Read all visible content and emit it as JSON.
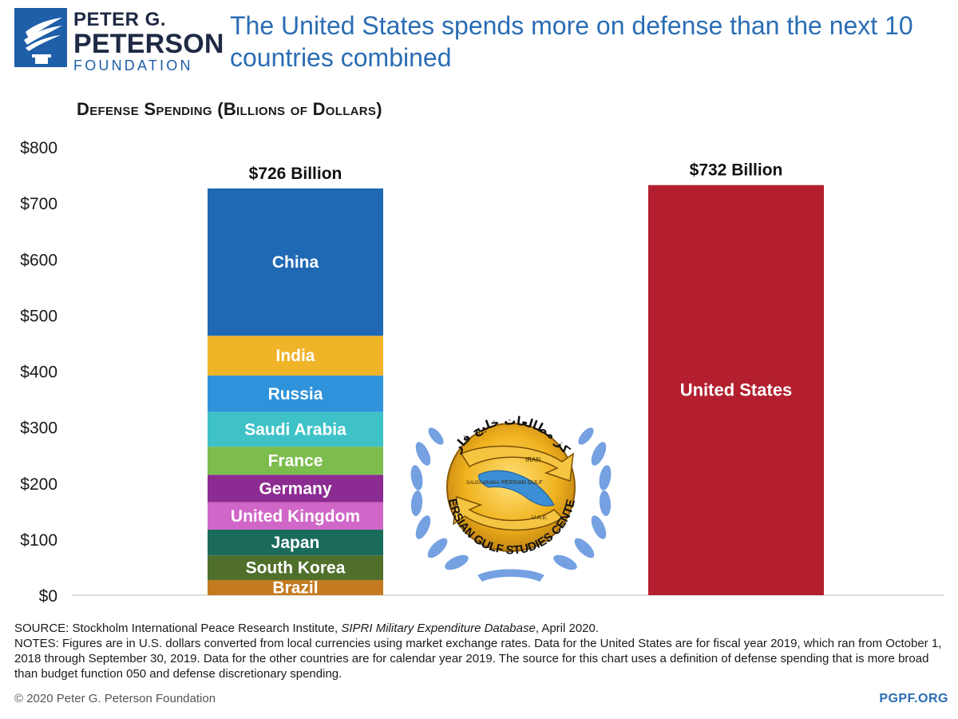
{
  "brand": {
    "line1": "PETER G.",
    "line2": "PETERSON",
    "line3": "FOUNDATION",
    "colors": {
      "navy": "#1f2a44",
      "blue": "#2a6db5"
    }
  },
  "headline": "The United States spends more on defense than the next 10 countries combined",
  "chart_data": {
    "type": "bar",
    "title": "Defense Spending (Billions of Dollars)",
    "ylim": [
      0,
      800
    ],
    "yticks": [
      0,
      100,
      200,
      300,
      400,
      500,
      600,
      700,
      800
    ],
    "ytick_labels": [
      "$0",
      "$100",
      "$200",
      "$300",
      "$400",
      "$500",
      "$600",
      "$700",
      "$800"
    ],
    "grid": false,
    "bars": [
      {
        "total_label": "$726 Billion",
        "total": 726,
        "stacked": true,
        "segments": [
          {
            "name": "Brazil",
            "value": 27,
            "color": "#c47a1f"
          },
          {
            "name": "South Korea",
            "value": 44,
            "color": "#4f6f2b"
          },
          {
            "name": "Japan",
            "value": 46,
            "color": "#1b6b5b"
          },
          {
            "name": "United Kingdom",
            "value": 49,
            "color": "#d066c7"
          },
          {
            "name": "Germany",
            "value": 49,
            "color": "#8c2b91"
          },
          {
            "name": "France",
            "value": 50,
            "color": "#7dbd4e"
          },
          {
            "name": "Saudi Arabia",
            "value": 62,
            "color": "#3ec2c8"
          },
          {
            "name": "Russia",
            "value": 65,
            "color": "#2e93db"
          },
          {
            "name": "India",
            "value": 71,
            "color": "#f0b428"
          },
          {
            "name": "China",
            "value": 263,
            "color": "#1f68b3"
          }
        ]
      },
      {
        "total_label": "$732 Billion",
        "total": 732,
        "stacked": false,
        "segments": [
          {
            "name": "United States",
            "value": 732,
            "color": "#b31f2e"
          }
        ]
      }
    ]
  },
  "watermark": {
    "arabic": "مرکز مطالعات خلیج فارس",
    "english": "PERSIAN GULF STUDIES CENTER",
    "map_labels": [
      "IRAN",
      "PERSIAN GULF",
      "SAUDI ARABIA",
      "U.A.E."
    ]
  },
  "footer": {
    "source_prefix": "SOURCE: Stockholm International Peace Research Institute, ",
    "source_italic": "SIPRI Military Expenditure Database",
    "source_suffix": ", April 2020.",
    "notes": "NOTES: Figures are in U.S. dollars converted from local currencies using market exchange rates. Data for the United States are for fiscal year 2019, which ran from October 1, 2018 through September 30, 2019. Data for the other countries are for calendar year 2019. The source for this chart uses a definition of defense spending that is more broad than budget function 050 and defense discretionary spending.",
    "copyright": "© 2020 Peter G. Peterson Foundation",
    "site": "PGPF.ORG"
  }
}
